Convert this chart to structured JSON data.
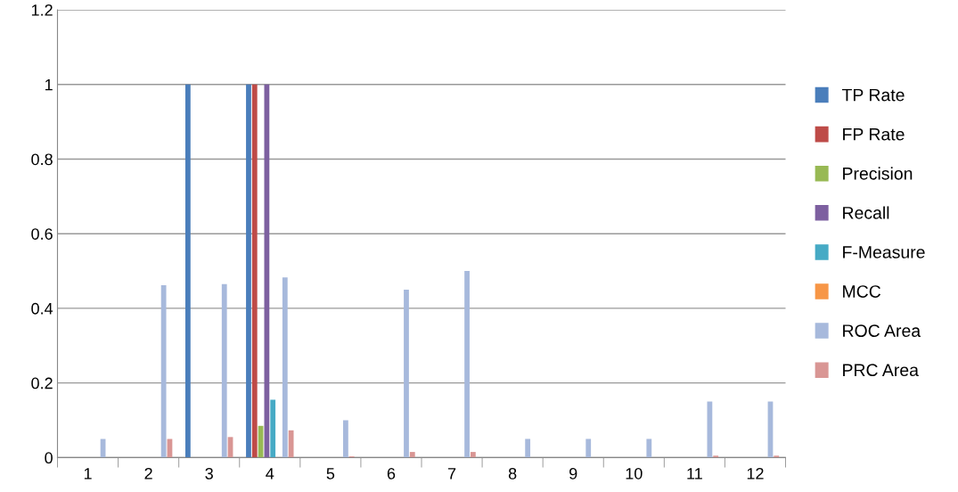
{
  "chart_data": {
    "type": "bar",
    "categories": [
      "1",
      "2",
      "3",
      "4",
      "5",
      "6",
      "7",
      "8",
      "9",
      "10",
      "11",
      "12"
    ],
    "series": [
      {
        "name": "TP Rate",
        "color": "#4a7ebb",
        "values": [
          0,
          0,
          1,
          1,
          0,
          0,
          0,
          0,
          0,
          0,
          0,
          0
        ]
      },
      {
        "name": "FP Rate",
        "color": "#be4b48",
        "values": [
          0,
          0,
          0,
          1,
          0,
          0,
          0,
          0,
          0,
          0,
          0,
          0
        ]
      },
      {
        "name": "Precision",
        "color": "#98b954",
        "values": [
          0,
          0,
          0,
          0.085,
          0,
          0,
          0,
          0,
          0,
          0,
          0,
          0
        ]
      },
      {
        "name": "Recall",
        "color": "#7d60a0",
        "values": [
          0,
          0,
          0,
          1,
          0,
          0,
          0,
          0,
          0,
          0,
          0,
          0
        ]
      },
      {
        "name": "F-Measure",
        "color": "#46aac5",
        "values": [
          0,
          0,
          0,
          0.155,
          0,
          0,
          0,
          0,
          0,
          0,
          0,
          0
        ]
      },
      {
        "name": "MCC",
        "color": "#f79646",
        "values": [
          0,
          0,
          0,
          0,
          0,
          0,
          0,
          0,
          0,
          0,
          0,
          0
        ]
      },
      {
        "name": "ROC Area",
        "color": "#a7b9dc",
        "values": [
          0.05,
          0.462,
          0.465,
          0.483,
          0.1,
          0.45,
          0.5,
          0.05,
          0.05,
          0.05,
          0.15,
          0.15
        ]
      },
      {
        "name": "PRC Area",
        "color": "#d99694",
        "values": [
          0,
          0.05,
          0.055,
          0.073,
          0.003,
          0.015,
          0.015,
          0,
          0,
          0,
          0.005,
          0.005
        ]
      }
    ],
    "ylim": [
      0,
      1.2
    ],
    "yticks": [
      0,
      0.2,
      0.4,
      0.6,
      0.8,
      1,
      1.2
    ],
    "grid": "y",
    "legend": "right"
  }
}
